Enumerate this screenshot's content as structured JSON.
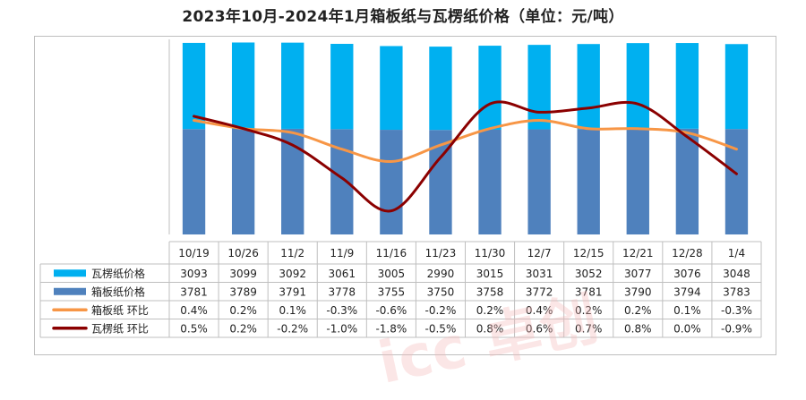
{
  "title": "2023年10月-2024年1月箱板纸与瓦楞纸价格（单位：元/吨）",
  "colors": {
    "corrugated_bar": "#00b0f0",
    "boxboard_bar": "#4f81bd",
    "boxboard_line": "#f79646",
    "corrugated_line": "#8b0000"
  },
  "chart_data": {
    "type": "bar",
    "categories": [
      "10/19",
      "10/26",
      "11/2",
      "11/9",
      "11/16",
      "11/23",
      "11/30",
      "12/7",
      "12/15",
      "12/21",
      "12/28",
      "1/4"
    ],
    "series": [
      {
        "name": "瓦楞纸价格",
        "kind": "stacked-bar",
        "values": [
          3093,
          3099,
          3092,
          3061,
          3005,
          2990,
          3015,
          3031,
          3052,
          3077,
          3076,
          3048
        ]
      },
      {
        "name": "箱板纸价格",
        "kind": "stacked-bar",
        "values": [
          3781,
          3789,
          3791,
          3778,
          3755,
          3750,
          3758,
          3772,
          3781,
          3790,
          3794,
          3783
        ]
      },
      {
        "name": "箱板纸 环比",
        "kind": "line",
        "values": [
          0.4,
          0.2,
          0.1,
          -0.3,
          -0.6,
          -0.2,
          0.2,
          0.4,
          0.2,
          0.2,
          0.1,
          -0.3
        ]
      },
      {
        "name": "瓦楞纸 环比",
        "kind": "line",
        "values": [
          0.5,
          0.2,
          -0.2,
          -1.0,
          -1.8,
          -0.5,
          0.8,
          0.6,
          0.7,
          0.8,
          0.0,
          -0.9
        ]
      }
    ],
    "table": {
      "rows": [
        {
          "label": "瓦楞纸价格",
          "cells": [
            "3093",
            "3099",
            "3092",
            "3061",
            "3005",
            "2990",
            "3015",
            "3031",
            "3052",
            "3077",
            "3076",
            "3048"
          ]
        },
        {
          "label": "箱板纸价格",
          "cells": [
            "3781",
            "3789",
            "3791",
            "3778",
            "3755",
            "3750",
            "3758",
            "3772",
            "3781",
            "3790",
            "3794",
            "3783"
          ]
        },
        {
          "label": "箱板纸 环比",
          "cells": [
            "0.4%",
            "0.2%",
            "0.1%",
            "-0.3%",
            "-0.6%",
            "-0.2%",
            "0.2%",
            "0.4%",
            "0.2%",
            "0.2%",
            "0.1%",
            "-0.3%"
          ]
        },
        {
          "label": "瓦楞纸 环比",
          "cells": [
            "0.5%",
            "0.2%",
            "-0.2%",
            "-1.0%",
            "-1.8%",
            "-0.5%",
            "0.8%",
            "0.6%",
            "0.7%",
            "0.8%",
            "0.0%",
            "-0.9%"
          ]
        }
      ]
    },
    "ylim": [
      0,
      7000
    ],
    "line_ylim": [
      -2.2,
      1.5
    ],
    "grid": false,
    "legend": "table-left"
  },
  "watermark": "icc 卓创"
}
